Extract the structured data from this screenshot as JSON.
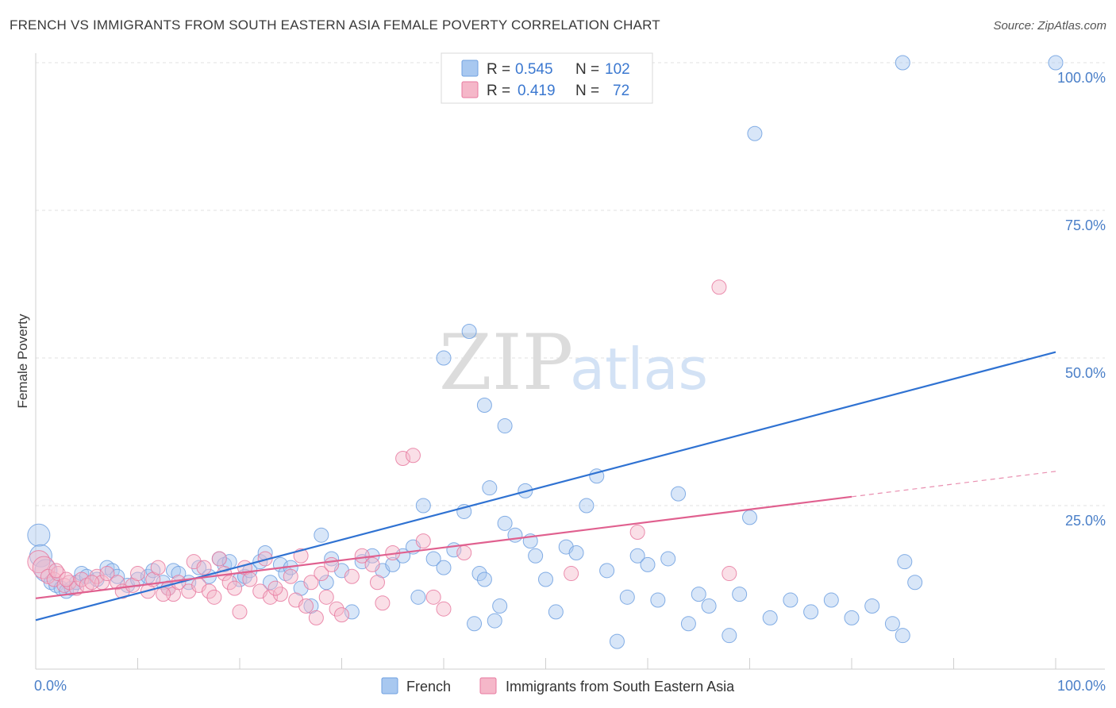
{
  "header": {
    "title": "FRENCH VS IMMIGRANTS FROM SOUTH EASTERN ASIA FEMALE POVERTY CORRELATION CHART",
    "source": "Source: ZipAtlas.com"
  },
  "watermark": {
    "zip": "ZIP",
    "atlas": "atlas"
  },
  "legend": {
    "rows": [
      {
        "r_label": "R =",
        "r_value": "0.545",
        "n_label": "N =",
        "n_value": "102",
        "color": "#a8c8f0"
      },
      {
        "r_label": "R =",
        "r_value": "0.419",
        "n_label": "N =",
        "n_value": "72",
        "color": "#f5b7c9"
      }
    ]
  },
  "bottom_legend": [
    {
      "label": "French",
      "color": "#a8c8f0"
    },
    {
      "label": "Immigrants from South Eastern Asia",
      "color": "#f5b7c9"
    }
  ],
  "chart_data": {
    "type": "scatter",
    "title": "FRENCH VS IMMIGRANTS FROM SOUTH EASTERN ASIA FEMALE POVERTY CORRELATION CHART",
    "xlabel": "",
    "ylabel": "Female Poverty",
    "xlim": [
      0,
      100
    ],
    "ylim": [
      0,
      100
    ],
    "x_tick_labels": [
      "0.0%",
      "100.0%"
    ],
    "y_tick_labels": [
      "25.0%",
      "50.0%",
      "75.0%",
      "100.0%"
    ],
    "y_tick_values": [
      25,
      50,
      75,
      100
    ],
    "grid": true,
    "series": [
      {
        "name": "French",
        "color": "#6fa0e0",
        "fill": "#a8c8f0",
        "trend": {
          "x": [
            0,
            100
          ],
          "y": [
            5.6,
            51.0
          ],
          "dashed_from": null
        },
        "points": [
          [
            0.3,
            20.0
          ],
          [
            0.5,
            16.5
          ],
          [
            1.0,
            14.0
          ],
          [
            1.5,
            12.0
          ],
          [
            2.0,
            11.5
          ],
          [
            2.5,
            11.0
          ],
          [
            3.0,
            10.5
          ],
          [
            3.5,
            11.0
          ],
          [
            4.0,
            12.0
          ],
          [
            4.5,
            13.5
          ],
          [
            5.0,
            13.0
          ],
          [
            6.0,
            12.5
          ],
          [
            7.0,
            14.5
          ],
          [
            7.5,
            14.0
          ],
          [
            8.0,
            13.0
          ],
          [
            9.0,
            11.5
          ],
          [
            10.0,
            12.5
          ],
          [
            11.0,
            13.0
          ],
          [
            11.5,
            14.0
          ],
          [
            12.5,
            12.0
          ],
          [
            13.0,
            11.0
          ],
          [
            13.5,
            14.0
          ],
          [
            14.0,
            13.5
          ],
          [
            15.0,
            12.0
          ],
          [
            16.0,
            14.5
          ],
          [
            17.0,
            13.0
          ],
          [
            18.0,
            16.0
          ],
          [
            18.5,
            15.0
          ],
          [
            19.0,
            15.5
          ],
          [
            20.0,
            12.5
          ],
          [
            20.5,
            13.0
          ],
          [
            21.0,
            14.0
          ],
          [
            22.0,
            15.5
          ],
          [
            22.5,
            17.0
          ],
          [
            23.0,
            12.0
          ],
          [
            24.0,
            15.0
          ],
          [
            24.5,
            13.5
          ],
          [
            25.0,
            14.5
          ],
          [
            26.0,
            11.0
          ],
          [
            27.0,
            8.0
          ],
          [
            28.0,
            20.0
          ],
          [
            28.5,
            12.0
          ],
          [
            29.0,
            16.0
          ],
          [
            30.0,
            14.0
          ],
          [
            31.0,
            7.0
          ],
          [
            32.0,
            15.5
          ],
          [
            33.0,
            16.5
          ],
          [
            34.0,
            14.0
          ],
          [
            35.0,
            15.0
          ],
          [
            36.0,
            16.5
          ],
          [
            37.0,
            18.0
          ],
          [
            37.5,
            9.5
          ],
          [
            38.0,
            25.0
          ],
          [
            39.0,
            16.0
          ],
          [
            40.0,
            14.5
          ],
          [
            41.0,
            17.5
          ],
          [
            42.0,
            24.0
          ],
          [
            43.0,
            5.0
          ],
          [
            43.5,
            13.5
          ],
          [
            44.0,
            12.5
          ],
          [
            44.5,
            28.0
          ],
          [
            45.0,
            5.5
          ],
          [
            46.0,
            22.0
          ],
          [
            47.0,
            20.0
          ],
          [
            48.0,
            27.5
          ],
          [
            48.5,
            19.0
          ],
          [
            49.0,
            16.5
          ],
          [
            50.0,
            12.5
          ],
          [
            51.0,
            7.0
          ],
          [
            52.0,
            18.0
          ],
          [
            53.0,
            17.0
          ],
          [
            54.0,
            25.0
          ],
          [
            55.0,
            30.0
          ],
          [
            56.0,
            14.0
          ],
          [
            57.0,
            2.0
          ],
          [
            58.0,
            9.5
          ],
          [
            59.0,
            16.5
          ],
          [
            60.0,
            15.0
          ],
          [
            61.0,
            9.0
          ],
          [
            62.0,
            16.0
          ],
          [
            63.0,
            27.0
          ],
          [
            64.0,
            5.0
          ],
          [
            65.0,
            10.0
          ],
          [
            66.0,
            8.0
          ],
          [
            68.0,
            3.0
          ],
          [
            69.0,
            10.0
          ],
          [
            70.0,
            23.0
          ],
          [
            72.0,
            6.0
          ],
          [
            74.0,
            9.0
          ],
          [
            76.0,
            7.0
          ],
          [
            78.0,
            9.0
          ],
          [
            80.0,
            6.0
          ],
          [
            82.0,
            8.0
          ],
          [
            84.0,
            5.0
          ],
          [
            85.0,
            3.0
          ],
          [
            85.2,
            15.5
          ],
          [
            86.2,
            12.0
          ],
          [
            70.5,
            88.0
          ],
          [
            85.0,
            100.0
          ],
          [
            100.0,
            100.0
          ],
          [
            42.5,
            54.5
          ],
          [
            40.0,
            50.0
          ],
          [
            44.0,
            42.0
          ],
          [
            46.0,
            38.5
          ],
          [
            45.5,
            8.0
          ]
        ]
      },
      {
        "name": "Immigrants from South Eastern Asia",
        "color": "#e87aa0",
        "fill": "#f5b7c9",
        "trend": {
          "x": [
            0,
            100
          ],
          "y": [
            9.3,
            30.8
          ],
          "dashed_from": 80
        },
        "points": [
          [
            0.3,
            15.5
          ],
          [
            0.8,
            14.5
          ],
          [
            1.2,
            13.0
          ],
          [
            1.8,
            12.5
          ],
          [
            2.2,
            13.5
          ],
          [
            2.8,
            11.5
          ],
          [
            3.3,
            12.0
          ],
          [
            4.0,
            11.0
          ],
          [
            4.5,
            12.5
          ],
          [
            5.0,
            11.5
          ],
          [
            6.0,
            13.0
          ],
          [
            6.5,
            12.0
          ],
          [
            7.0,
            13.5
          ],
          [
            8.0,
            12.0
          ],
          [
            8.5,
            10.5
          ],
          [
            9.5,
            11.5
          ],
          [
            10.0,
            13.5
          ],
          [
            11.0,
            10.5
          ],
          [
            11.5,
            12.5
          ],
          [
            12.0,
            14.5
          ],
          [
            13.0,
            11.0
          ],
          [
            13.5,
            10.0
          ],
          [
            14.0,
            12.0
          ],
          [
            15.0,
            10.5
          ],
          [
            15.5,
            15.5
          ],
          [
            16.0,
            11.5
          ],
          [
            16.5,
            14.5
          ],
          [
            17.0,
            10.5
          ],
          [
            17.5,
            9.5
          ],
          [
            18.0,
            16.0
          ],
          [
            18.5,
            13.5
          ],
          [
            19.0,
            12.0
          ],
          [
            19.5,
            11.0
          ],
          [
            20.0,
            7.0
          ],
          [
            20.5,
            14.5
          ],
          [
            21.0,
            12.5
          ],
          [
            22.0,
            10.5
          ],
          [
            22.5,
            16.0
          ],
          [
            23.0,
            9.5
          ],
          [
            24.0,
            10.0
          ],
          [
            25.0,
            13.0
          ],
          [
            25.5,
            9.0
          ],
          [
            26.0,
            16.5
          ],
          [
            26.5,
            8.0
          ],
          [
            27.0,
            12.0
          ],
          [
            27.5,
            6.0
          ],
          [
            28.0,
            13.5
          ],
          [
            28.5,
            9.5
          ],
          [
            29.0,
            15.0
          ],
          [
            29.5,
            7.5
          ],
          [
            30.0,
            6.5
          ],
          [
            31.0,
            13.0
          ],
          [
            32.0,
            16.5
          ],
          [
            33.0,
            15.0
          ],
          [
            34.0,
            8.5
          ],
          [
            35.0,
            17.0
          ],
          [
            36.0,
            33.0
          ],
          [
            37.0,
            33.5
          ],
          [
            38.0,
            19.0
          ],
          [
            39.0,
            9.5
          ],
          [
            40.0,
            7.5
          ],
          [
            42.0,
            17.0
          ],
          [
            52.5,
            13.5
          ],
          [
            59.0,
            20.5
          ],
          [
            67.0,
            62.0
          ],
          [
            68.0,
            13.5
          ],
          [
            2.0,
            14.0
          ],
          [
            3.0,
            12.5
          ],
          [
            5.5,
            12.0
          ],
          [
            12.5,
            10.0
          ],
          [
            23.5,
            11.0
          ],
          [
            33.5,
            12.0
          ]
        ]
      }
    ]
  }
}
